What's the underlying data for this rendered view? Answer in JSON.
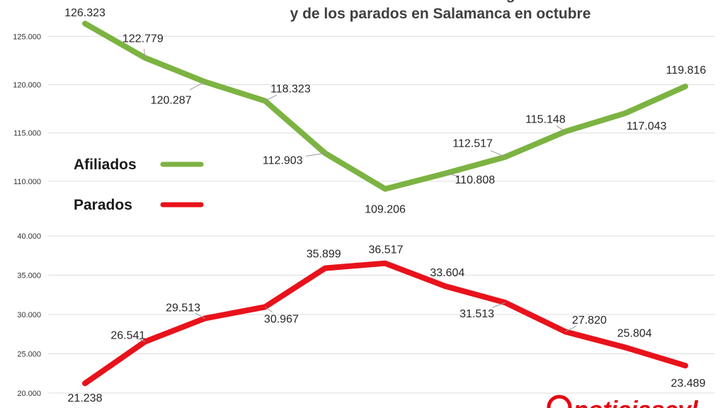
{
  "chart_data": {
    "type": "line",
    "title_lines": [
      "Evolución de los afiliados a la Seguridad Social",
      "y de los parados en Salamanca en octubre"
    ],
    "legend": [
      {
        "name": "Afiliados",
        "color": "#7cb342"
      },
      {
        "name": "Parados",
        "color": "#e8121b"
      }
    ],
    "panels": [
      {
        "series_name": "Afiliados",
        "color": "#7cb342",
        "ylim": [
          107500,
          127000
        ],
        "yticks": [
          110000,
          115000,
          120000,
          125000
        ],
        "ytick_labels": [
          "110.000",
          "115.000",
          "120.000",
          "125.000"
        ],
        "values": [
          126323,
          122779,
          120287,
          118323,
          112903,
          109206,
          110808,
          112517,
          115148,
          117043,
          119816
        ],
        "labels": [
          "126.323",
          "122.779",
          "120.287",
          "118.323",
          "112.903",
          "109.206",
          "110.808",
          "112.517",
          "115.148",
          "117.043",
          "119.816"
        ]
      },
      {
        "series_name": "Parados",
        "color": "#e8121b",
        "ylim": [
          19000,
          41000
        ],
        "yticks": [
          20000,
          25000,
          30000,
          35000,
          40000
        ],
        "ytick_labels": [
          "20.000",
          "25.000",
          "30.000",
          "35.000",
          "40.000"
        ],
        "values": [
          21238,
          26541,
          29513,
          30967,
          35899,
          36517,
          33604,
          31513,
          27820,
          25804,
          23489
        ],
        "labels": [
          "21.238",
          "26.541",
          "29.513",
          "30.967",
          "35.899",
          "36.517",
          "33.604",
          "31.513",
          "27.820",
          "25.804",
          "23.489"
        ]
      }
    ],
    "brand": "noticiascyl",
    "grid": true
  }
}
